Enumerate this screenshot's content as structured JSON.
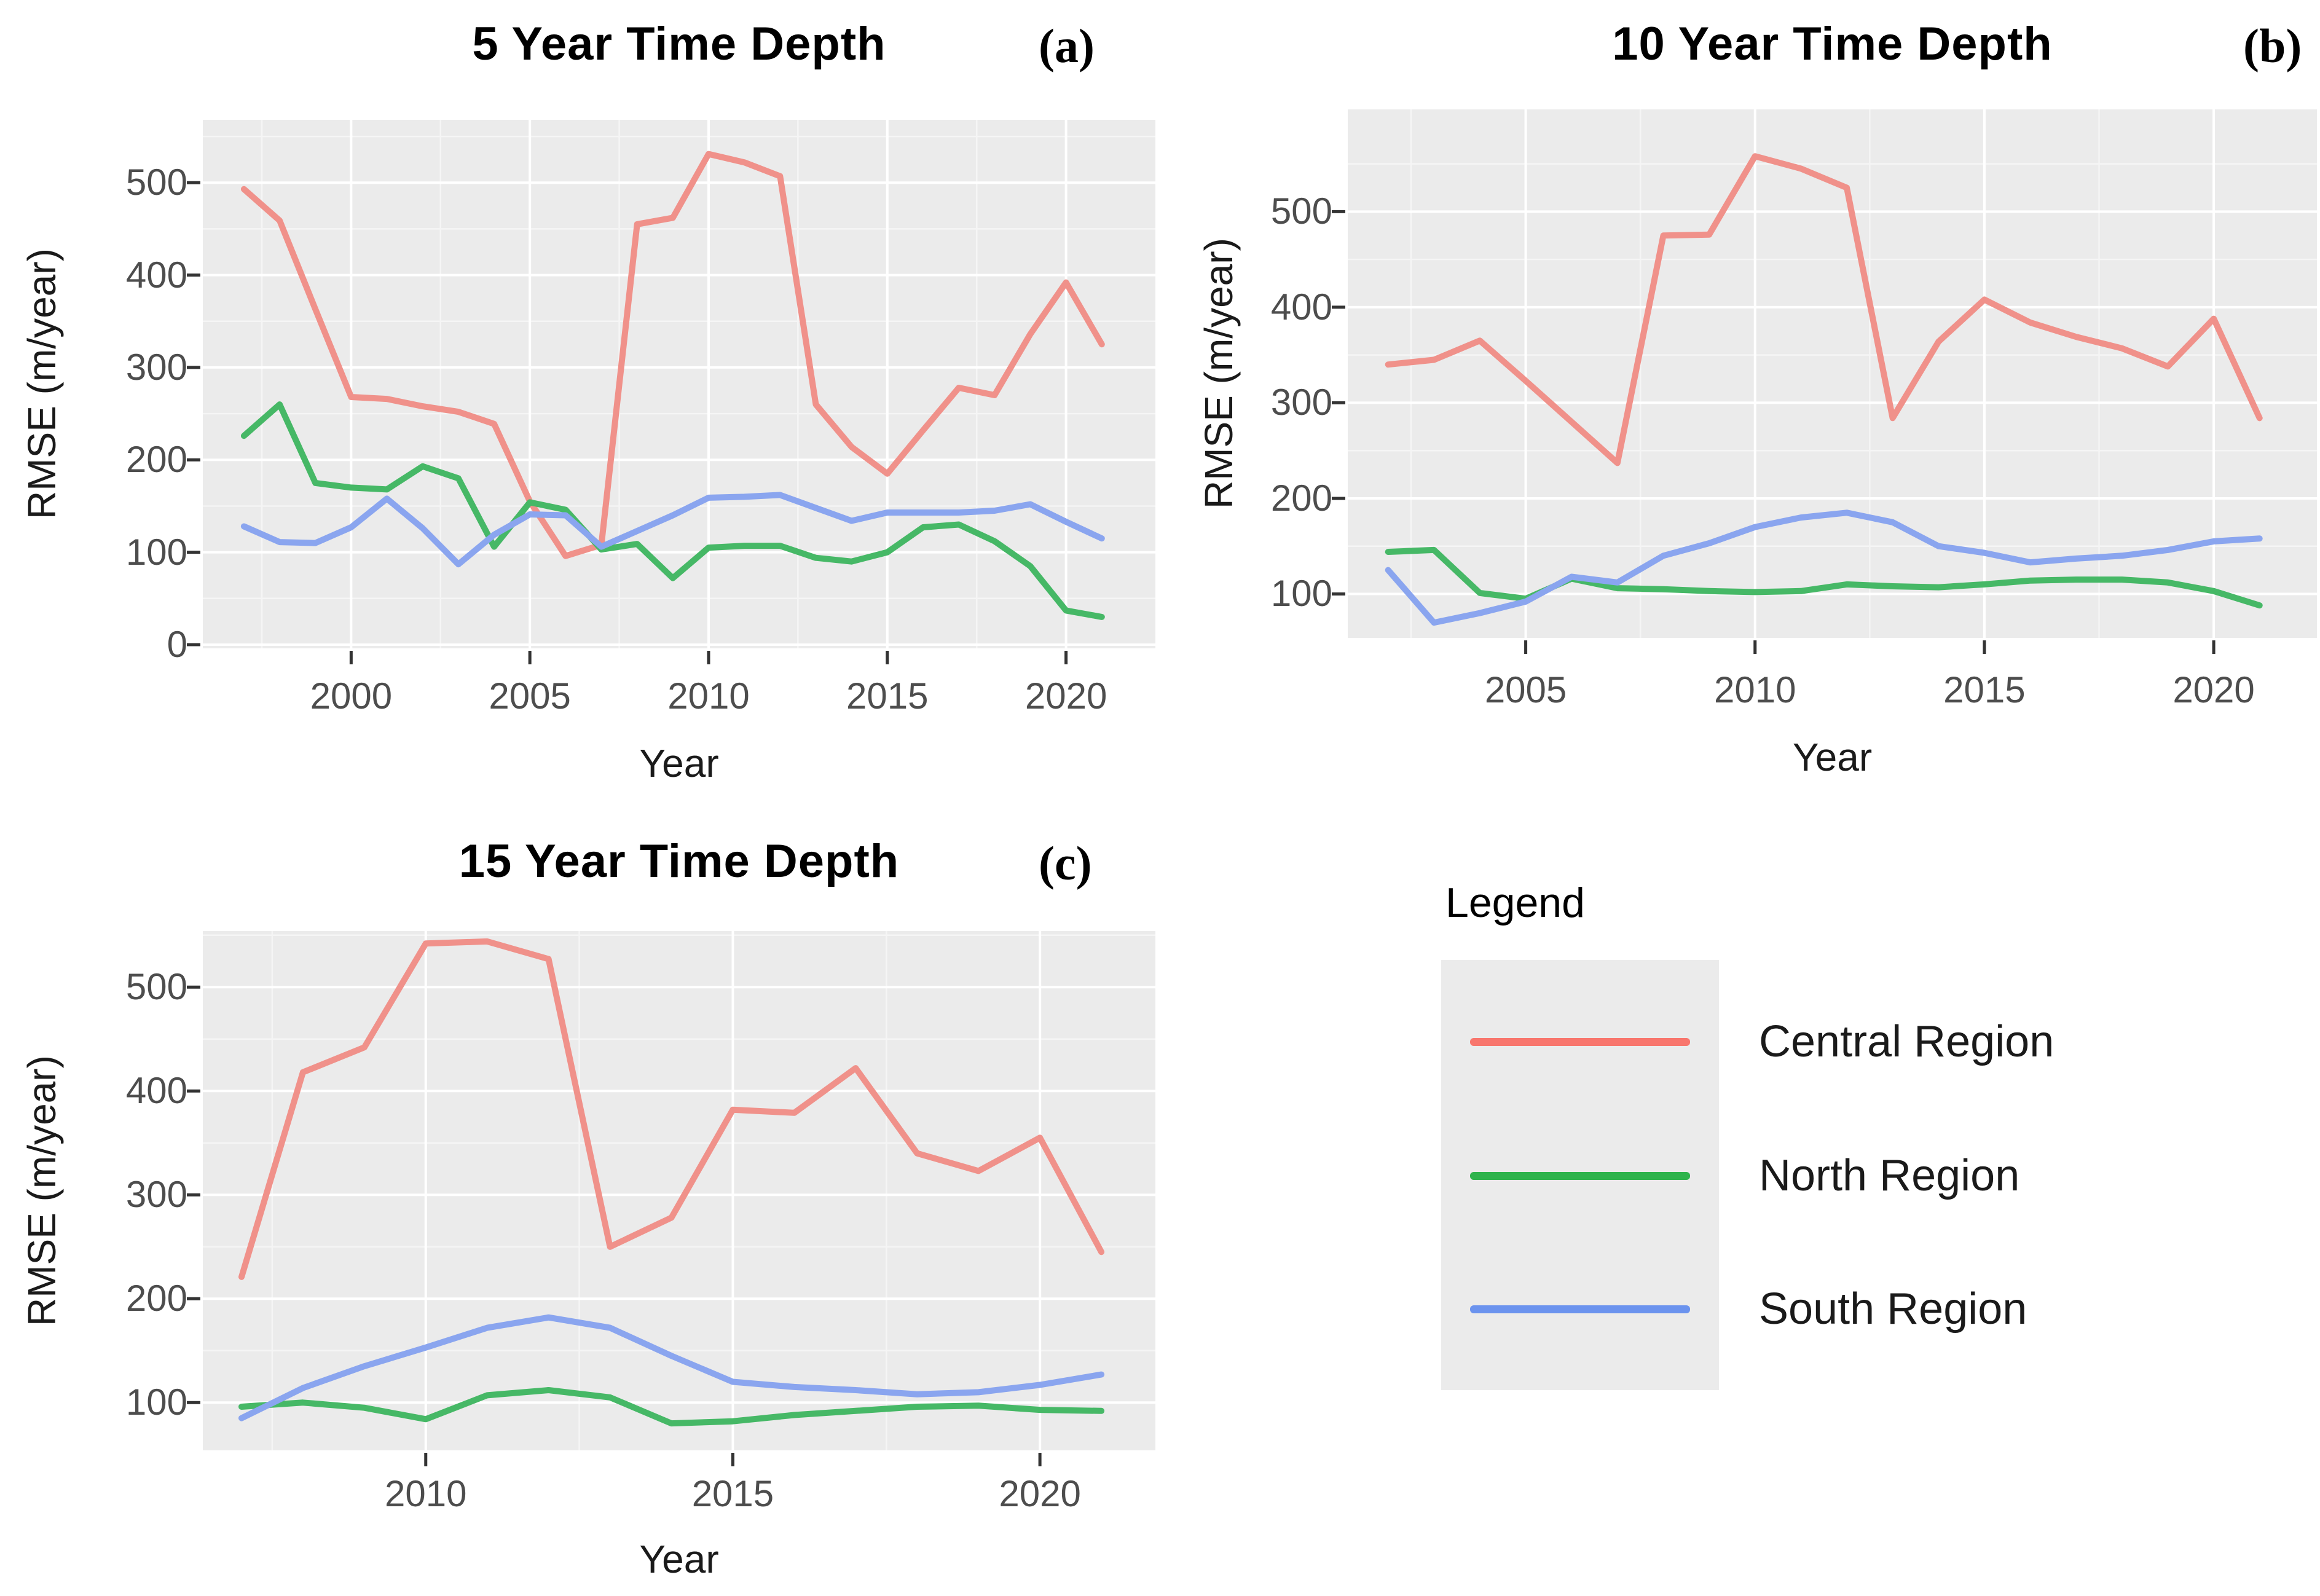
{
  "figure": {
    "background": "#ffffff",
    "panel_bg": "#ebebeb",
    "grid_major_color": "#ffffff",
    "grid_minor_color": "#f5f5f5",
    "tick_mark_color": "#333333",
    "tick_label_color": "#4d4d4d",
    "axis_title_color": "#1a1a1a"
  },
  "legend": {
    "title": "Legend",
    "entries": [
      {
        "label": "Central Region",
        "color": "#f8766d"
      },
      {
        "label": "North Region",
        "color": "#2eb34c"
      },
      {
        "label": "South Region",
        "color": "#6b93ee"
      }
    ]
  },
  "chart_data": [
    {
      "id": "a",
      "type": "line",
      "title": "5 Year Time Depth",
      "tag": "(a)",
      "xlabel": "Year",
      "ylabel": "RMSE (m/year)",
      "x_ticks": [
        2000,
        2005,
        2010,
        2015,
        2020
      ],
      "y_ticks": [
        0,
        100,
        200,
        300,
        400,
        500
      ],
      "xlim": [
        1995.85,
        2022.5
      ],
      "ylim": [
        -4,
        568
      ],
      "grid": true,
      "legend_position": "none",
      "x": [
        1997,
        1998,
        1999,
        2000,
        2001,
        2002,
        2003,
        2004,
        2005,
        2006,
        2007,
        2008,
        2009,
        2010,
        2011,
        2012,
        2013,
        2014,
        2015,
        2016,
        2017,
        2018,
        2019,
        2020,
        2021
      ],
      "series": [
        {
          "name": "Central Region",
          "color": "#f0918a",
          "values": [
            493,
            459,
            363,
            268,
            266,
            258,
            252,
            239,
            155,
            96,
            108,
            455,
            462,
            531,
            522,
            507,
            260,
            214,
            185,
            232,
            278,
            270,
            336,
            392,
            325
          ]
        },
        {
          "name": "North Region",
          "color": "#46b866",
          "values": [
            226,
            260,
            175,
            170,
            168,
            193,
            180,
            106,
            154,
            146,
            103,
            109,
            72,
            105,
            107,
            107,
            94,
            90,
            100,
            127,
            130,
            112,
            85,
            37,
            30
          ]
        },
        {
          "name": "South Region",
          "color": "#8aa5ef",
          "values": [
            128,
            111,
            110,
            127,
            158,
            126,
            87,
            119,
            141,
            140,
            106,
            123,
            140,
            159,
            160,
            162,
            148,
            134,
            143,
            143,
            143,
            145,
            152,
            133,
            115
          ]
        }
      ]
    },
    {
      "id": "b",
      "type": "line",
      "title": "10 Year Time Depth",
      "tag": "(b)",
      "xlabel": "Year",
      "ylabel": "RMSE (m/year)",
      "x_ticks": [
        2005,
        2010,
        2015,
        2020
      ],
      "y_ticks": [
        100,
        200,
        300,
        400,
        500
      ],
      "xlim": [
        2001.12,
        2022.25
      ],
      "ylim": [
        54,
        607
      ],
      "grid": true,
      "legend_position": "none",
      "x": [
        2002,
        2003,
        2004,
        2005,
        2006,
        2007,
        2008,
        2009,
        2010,
        2011,
        2012,
        2013,
        2014,
        2015,
        2016,
        2017,
        2018,
        2019,
        2020,
        2021
      ],
      "series": [
        {
          "name": "Central Region",
          "color": "#f0918a",
          "values": [
            340,
            345,
            365,
            323,
            280,
            237,
            475,
            476,
            558,
            545,
            525,
            284,
            364,
            408,
            384,
            369,
            357,
            338,
            388,
            284
          ]
        },
        {
          "name": "North Region",
          "color": "#46b866",
          "values": [
            144,
            146,
            101,
            95,
            116,
            106,
            105,
            103,
            102,
            103,
            110,
            108,
            107,
            110,
            114,
            115,
            115,
            112,
            103,
            88
          ]
        },
        {
          "name": "South Region",
          "color": "#8aa5ef",
          "values": [
            125,
            70,
            80,
            92,
            118,
            112,
            140,
            153,
            170,
            180,
            185,
            175,
            150,
            143,
            133,
            137,
            140,
            146,
            155,
            158
          ]
        }
      ]
    },
    {
      "id": "c",
      "type": "line",
      "title": "15 Year Time Depth",
      "tag": "(c)",
      "xlabel": "Year",
      "ylabel": "RMSE (m/year)",
      "x_ticks": [
        2010,
        2015,
        2020
      ],
      "y_ticks": [
        100,
        200,
        300,
        400,
        500
      ],
      "xlim": [
        2006.37,
        2021.88
      ],
      "ylim": [
        54,
        554
      ],
      "grid": true,
      "legend_position": "none",
      "x": [
        2007,
        2008,
        2009,
        2010,
        2011,
        2012,
        2013,
        2014,
        2015,
        2016,
        2017,
        2018,
        2019,
        2020,
        2021
      ],
      "series": [
        {
          "name": "Central Region",
          "color": "#f0918a",
          "values": [
            221,
            418,
            442,
            542,
            544,
            527,
            250,
            278,
            382,
            379,
            422,
            340,
            323,
            355,
            245
          ]
        },
        {
          "name": "North Region",
          "color": "#46b866",
          "values": [
            96,
            100,
            95,
            84,
            107,
            112,
            105,
            80,
            82,
            88,
            92,
            96,
            97,
            93,
            92
          ]
        },
        {
          "name": "South Region",
          "color": "#8aa5ef",
          "values": [
            85,
            114,
            135,
            153,
            172,
            182,
            172,
            145,
            120,
            115,
            112,
            108,
            110,
            117,
            127
          ]
        }
      ]
    }
  ]
}
